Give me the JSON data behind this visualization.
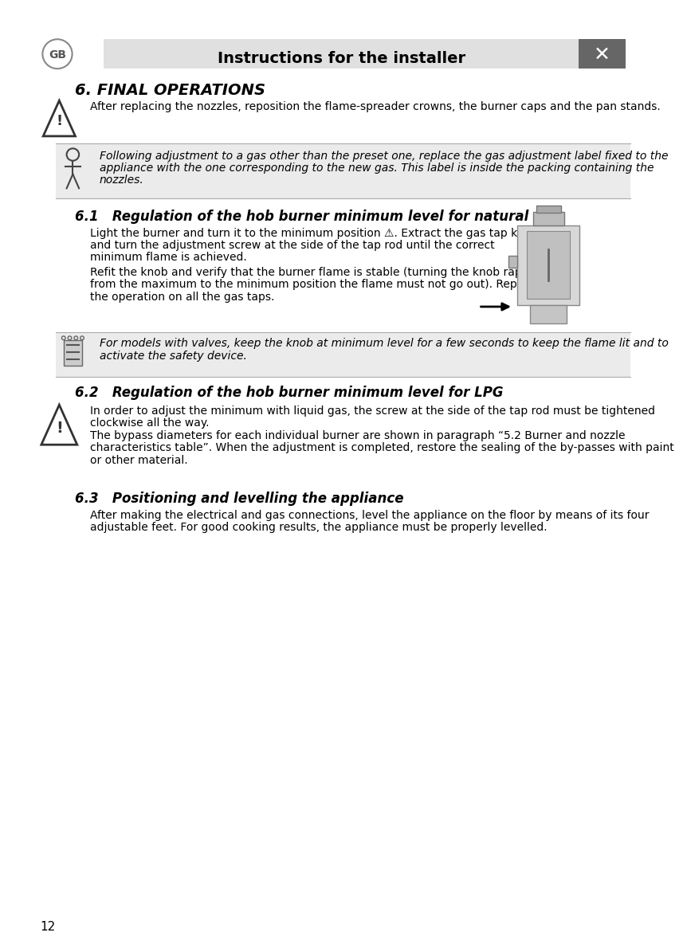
{
  "page_number": "12",
  "header_text": "Instructions for the installer",
  "header_bg": "#e0e0e0",
  "page_bg": "#ffffff",
  "section_title": "6. FINAL OPERATIONS",
  "section6_body": "After replacing the nozzles, reposition the flame-spreader crowns, the burner caps and the pan stands.",
  "italic_box_bg": "#ebebeb",
  "italic_box_text1": "Following adjustment to a gas other than the preset one, replace the gas adjustment label fixed to the",
  "italic_box_text2": "appliance with the one corresponding to the new gas. This label is inside the packing containing the",
  "italic_box_text3": "nozzles.",
  "sub61_title": "6.1   Regulation of the hob burner minimum level for natural gas",
  "sub61_body1a": "Light the burner and turn it to the minimum position ⚠. Extract the gas tap knob",
  "sub61_body1b": "and turn the adjustment screw at the side of the tap rod until the correct",
  "sub61_body1c": "minimum flame is achieved.",
  "sub61_body2a": "Refit the knob and verify that the burner flame is stable (turning the knob rapidly",
  "sub61_body2b": "from the maximum to the minimum position the flame must not go out). Repeat",
  "sub61_body2c": "the operation on all the gas taps.",
  "note_box_bg": "#ebebeb",
  "note_text1": "For models with valves, keep the knob at minimum level for a few seconds to keep the flame lit and to",
  "note_text2": "activate the safety device.",
  "sub62_title": "6.2   Regulation of the hob burner minimum level for LPG",
  "sub62_body1": "In order to adjust the minimum with liquid gas, the screw at the side of the tap rod must be tightened",
  "sub62_body2": "clockwise all the way.",
  "sub62_body3": "The bypass diameters for each individual burner are shown in paragraph “5.2 Burner and nozzle",
  "sub62_body4": "characteristics table”. When the adjustment is completed, restore the sealing of the by-passes with paint",
  "sub62_body5": "or other material.",
  "sub63_title": "6.3   Positioning and levelling the appliance",
  "sub63_body1": "After making the electrical and gas connections, level the appliance on the floor by means of its four",
  "sub63_body2": "adjustable feet. For good cooking results, the appliance must be properly levelled."
}
